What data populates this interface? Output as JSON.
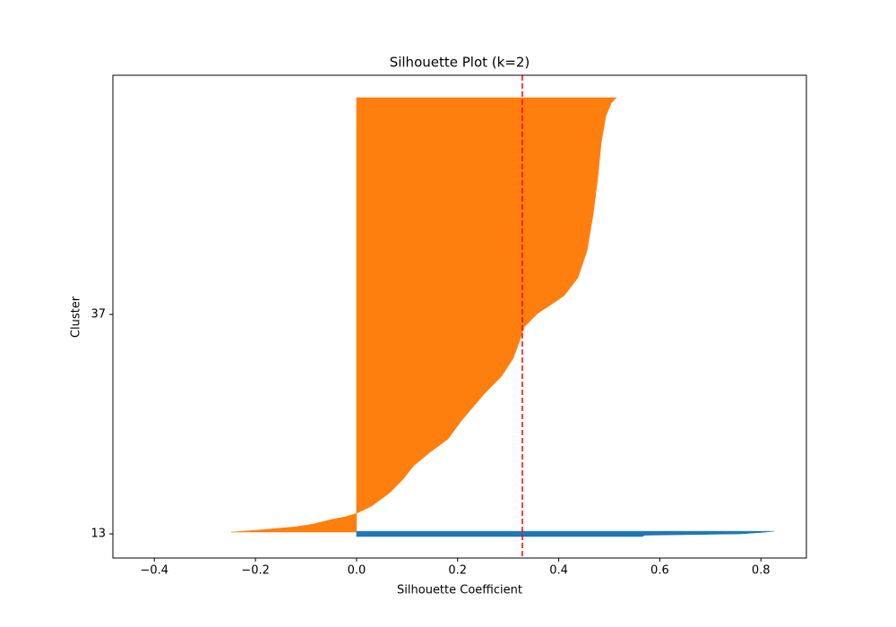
{
  "chart_data": {
    "type": "silhouette",
    "title": "Silhouette Plot (k=2)",
    "x_label": "Silhouette Coefficient",
    "y_label": "Cluster",
    "xlim": [
      -0.482,
      0.89
    ],
    "ylim": [
      10.36,
      63.16
    ],
    "xticks": [
      {
        "value": -0.4,
        "label": "−0.4"
      },
      {
        "value": -0.2,
        "label": "−0.2"
      },
      {
        "value": 0,
        "label": "0.0"
      },
      0.2,
      0.4,
      0.6,
      0.8
    ],
    "yticks": [
      13,
      37
    ],
    "grid": false,
    "series": [
      {
        "color": "#1f77b4",
        "y": [
          12.71,
          12.85,
          13.0,
          13.15,
          13.29
        ],
        "values": [
          0.565,
          0.57,
          0.76,
          0.8,
          0.826
        ]
      },
      {
        "color": "#ff7f0e",
        "y": [
          13.2,
          13.39,
          13.78,
          14.08,
          14.57,
          14.86,
          15.25,
          16.04,
          17.51,
          18.98,
          20.45,
          21.91,
          23.38,
          25.34,
          28.28,
          30.24,
          32.2,
          34.16,
          35.63,
          37.1,
          38.08,
          39.06,
          41.02,
          43.96,
          47.87,
          51.79,
          55.71,
          58.65,
          60.12,
          60.71
        ],
        "values": [
          -0.248,
          -0.2,
          -0.12,
          -0.085,
          -0.05,
          -0.023,
          0.0,
          0.03,
          0.066,
          0.092,
          0.113,
          0.145,
          0.181,
          0.207,
          0.252,
          0.287,
          0.31,
          0.323,
          0.332,
          0.358,
          0.385,
          0.411,
          0.438,
          0.456,
          0.468,
          0.477,
          0.484,
          0.493,
          0.504,
          0.514
        ]
      }
    ],
    "vline": {
      "value": 0.328,
      "color": "#ff0000"
    }
  }
}
